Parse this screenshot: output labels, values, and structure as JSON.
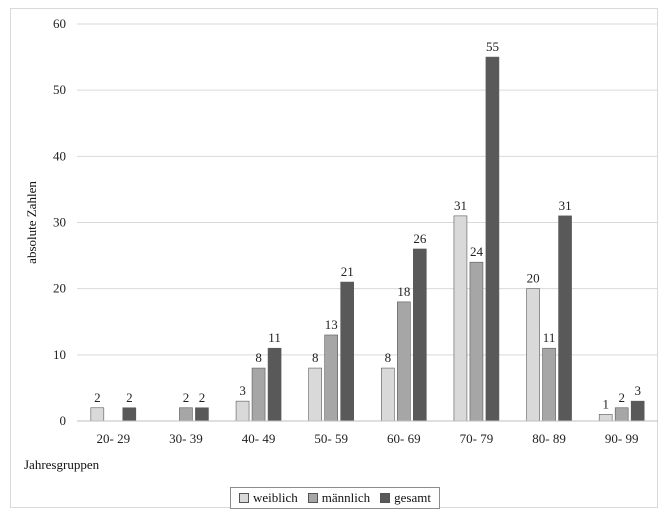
{
  "chart_data": {
    "type": "bar",
    "categories": [
      "20- 29",
      "30- 39",
      "40- 49",
      "50- 59",
      "60- 69",
      "70- 79",
      "80- 89",
      "90- 99"
    ],
    "series": [
      {
        "name": "weiblich",
        "values": [
          2,
          0,
          3,
          8,
          8,
          31,
          20,
          1
        ],
        "color": "#d9d9d9"
      },
      {
        "name": "männlich",
        "values": [
          0,
          2,
          8,
          13,
          18,
          24,
          11,
          2
        ],
        "color": "#a6a6a6"
      },
      {
        "name": "gesamt",
        "values": [
          2,
          2,
          11,
          21,
          26,
          55,
          31,
          3
        ],
        "color": "#595959"
      }
    ],
    "data_labels": [
      [
        "2",
        "",
        "3",
        "8",
        "8",
        "31",
        "20",
        "1"
      ],
      [
        "",
        "2",
        "8",
        "13",
        "18",
        "24",
        "11",
        "2"
      ],
      [
        "2",
        "2",
        "11",
        "21",
        "26",
        "55",
        "31",
        "3"
      ]
    ],
    "title": "",
    "xlabel": "Jahresgruppen",
    "ylabel": "absolute Zahlen",
    "ylim": [
      0,
      60
    ],
    "yticks": [
      0,
      10,
      20,
      30,
      40,
      50,
      60
    ],
    "grid": true,
    "legend_position": "bottom"
  }
}
